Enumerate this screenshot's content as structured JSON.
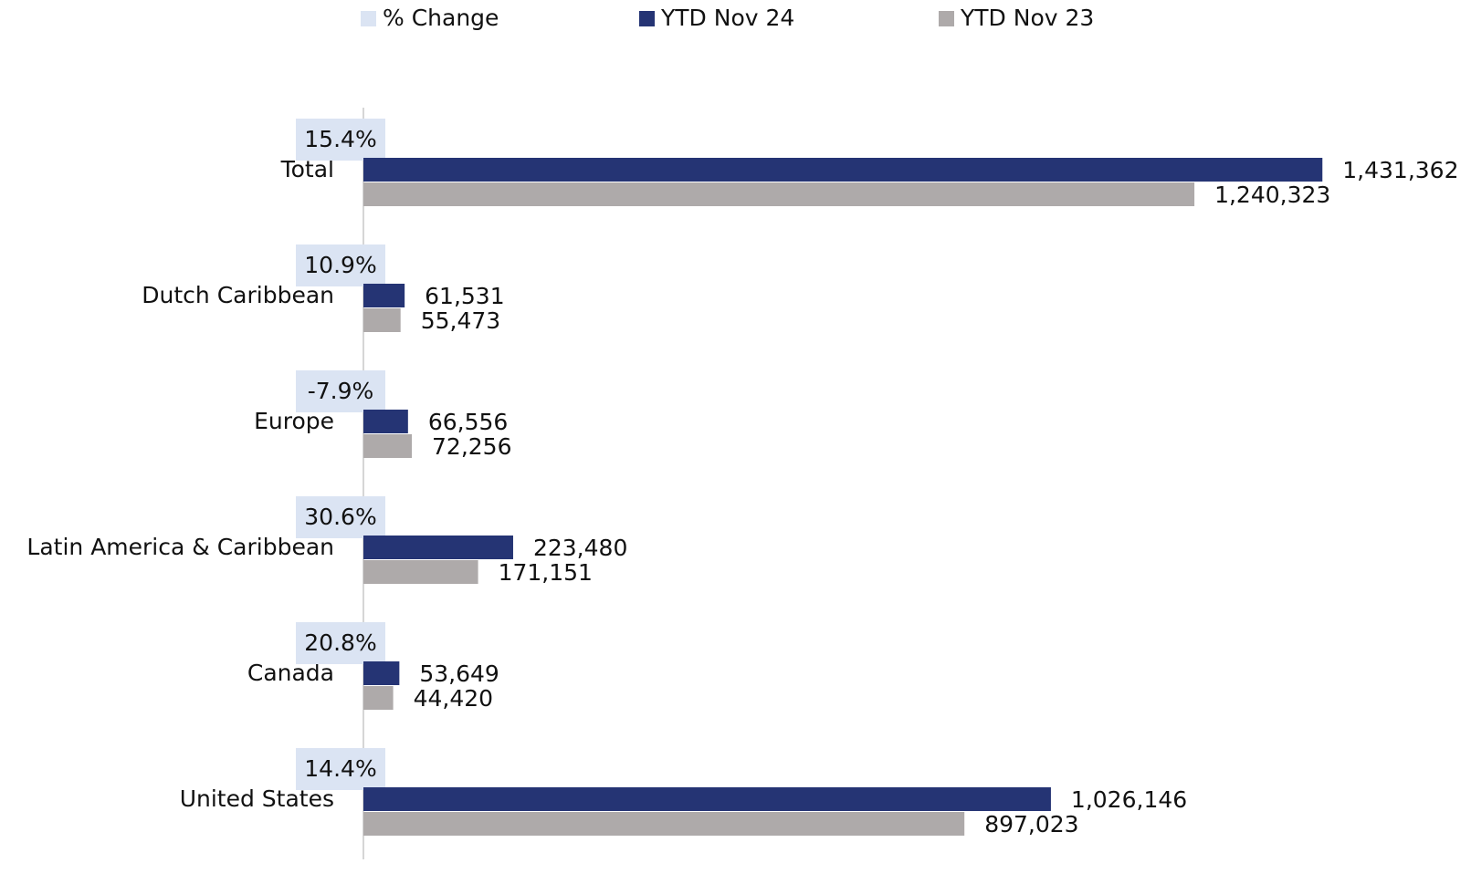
{
  "chart_data": {
    "type": "bar",
    "orientation": "horizontal",
    "categories": [
      "Total",
      "Dutch Caribbean",
      "Europe",
      "Latin America & Caribbean",
      "Canada",
      "United States"
    ],
    "series": [
      {
        "name": "% Change",
        "color": "#dbe4f3",
        "values": [
          15.4,
          10.9,
          -7.9,
          30.6,
          20.8,
          14.4
        ],
        "value_labels": [
          "15.4%",
          "10.9%",
          "-7.9%",
          "30.6%",
          "20.8%",
          "14.4%"
        ]
      },
      {
        "name": "YTD Nov 24",
        "color": "#253474",
        "values": [
          1431362,
          61531,
          66556,
          223480,
          53649,
          1026146
        ],
        "value_labels": [
          "1,431,362",
          "61,531",
          "66,556",
          "223,480",
          "53,649",
          "1,026,146"
        ]
      },
      {
        "name": "YTD Nov 23",
        "color": "#aeaaaa",
        "values": [
          1240323,
          55473,
          72256,
          171151,
          44420,
          897023
        ],
        "value_labels": [
          "1,240,323",
          "55,473",
          "72,256",
          "171,151",
          "44,420",
          "897,023"
        ]
      }
    ],
    "xlim": [
      0,
      1600000
    ]
  }
}
